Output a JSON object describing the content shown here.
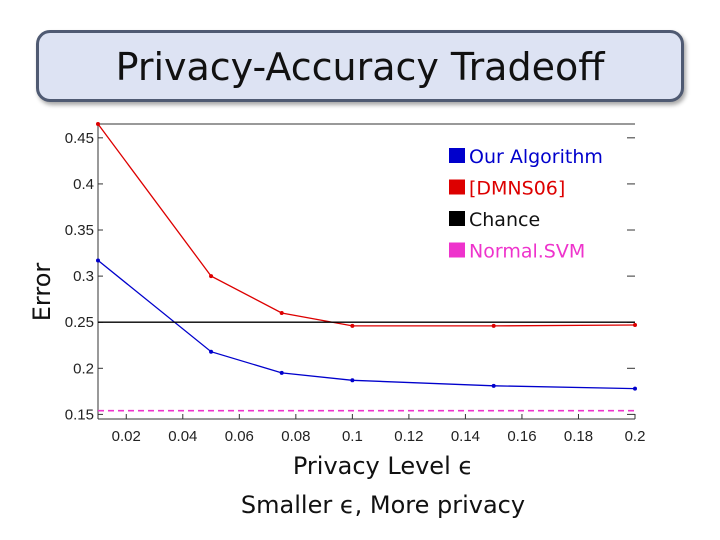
{
  "slide": {
    "title": "Privacy-Accuracy Tradeoff",
    "subtitle": "Smaller ϵ, More privacy"
  },
  "chart_data": {
    "type": "line",
    "xlabel": "Privacy Level ϵ",
    "ylabel": "Error",
    "xlim": [
      0.01,
      0.2
    ],
    "ylim": [
      0.145,
      0.465
    ],
    "x_ticks": [
      "0.02",
      "0.04",
      "0.06",
      "0.08",
      "0.1",
      "0.12",
      "0.14",
      "0.16",
      "0.18",
      "0.2"
    ],
    "y_ticks": [
      "0.45",
      "0.4",
      "0.35",
      "0.3",
      "0.25",
      "0.2",
      "0.15"
    ],
    "x_tick_values": [
      0.02,
      0.04,
      0.06,
      0.08,
      0.1,
      0.12,
      0.14,
      0.16,
      0.18,
      0.2
    ],
    "y_tick_values": [
      0.45,
      0.4,
      0.35,
      0.3,
      0.25,
      0.2,
      0.15
    ],
    "legend_position": "top-right",
    "grid": false,
    "series": [
      {
        "name": "Our Algorithm",
        "color": "#0000cc",
        "style": "solid",
        "x": [
          0.01,
          0.05,
          0.075,
          0.1,
          0.15,
          0.2
        ],
        "y": [
          0.317,
          0.218,
          0.195,
          0.187,
          0.181,
          0.178
        ]
      },
      {
        "name": "[DMNS06]",
        "color": "#dd0000",
        "style": "solid",
        "x": [
          0.01,
          0.05,
          0.075,
          0.1,
          0.15,
          0.2
        ],
        "y": [
          0.465,
          0.3,
          0.26,
          0.246,
          0.246,
          0.247
        ]
      },
      {
        "name": "Chance",
        "color": "#000000",
        "style": "solid",
        "x": [
          0.01,
          0.2
        ],
        "y": [
          0.25,
          0.25
        ]
      },
      {
        "name": "Normal.SVM",
        "color": "#ee33cc",
        "style": "dashed",
        "x": [
          0.01,
          0.2
        ],
        "y": [
          0.154,
          0.154
        ]
      }
    ]
  }
}
